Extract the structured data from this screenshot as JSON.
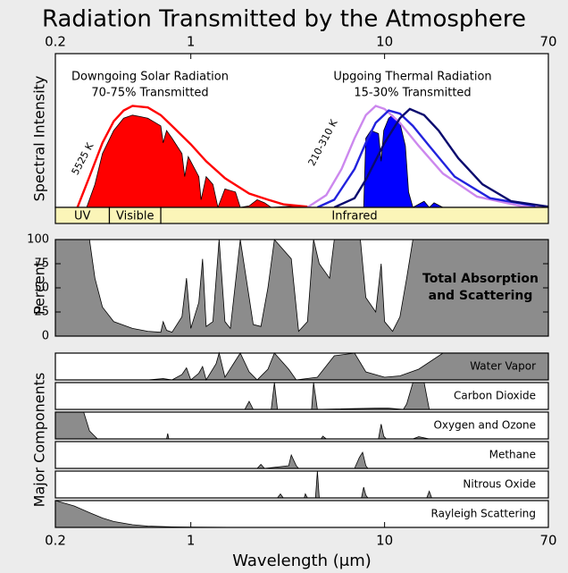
{
  "chart_data": [
    {
      "type": "area",
      "title": "Radiation Transmitted by the Atmosphere",
      "ylabel": "Spectral Intensity",
      "xscale": "log",
      "xlim": [
        0.2,
        70
      ],
      "xticks": [
        0.2,
        1,
        10,
        70
      ],
      "ylim": [
        0,
        1
      ],
      "annotations": [
        "Downgoing Solar Radiation",
        "70-75% Transmitted",
        "Upgoing Thermal Radiation",
        "15-30% Transmitted",
        "5525 K",
        "210-310 K"
      ],
      "bands": [
        {
          "label": "UV",
          "from": 0.2,
          "to": 0.38
        },
        {
          "label": "Visible",
          "from": 0.38,
          "to": 0.7
        },
        {
          "label": "Infrared",
          "from": 0.7,
          "to": 70
        }
      ],
      "series": [
        {
          "style": "area",
          "color": "#ff0000",
          "x": [
            0.29,
            0.32,
            0.35,
            0.4,
            0.45,
            0.5,
            0.55,
            0.6,
            0.7,
            0.72,
            0.75,
            0.8,
            0.9,
            0.93,
            0.97,
            1.1,
            1.13,
            1.2,
            1.3,
            1.38,
            1.5,
            1.7,
            1.8,
            2.0,
            2.2,
            2.4,
            2.6,
            3.5,
            4
          ],
          "values": [
            0,
            0.15,
            0.35,
            0.5,
            0.58,
            0.6,
            0.59,
            0.58,
            0.53,
            0.42,
            0.5,
            0.45,
            0.35,
            0.2,
            0.33,
            0.2,
            0.05,
            0.2,
            0.15,
            0,
            0.12,
            0.1,
            0,
            0.01,
            0.05,
            0.03,
            0,
            0.01,
            0
          ]
        },
        {
          "style": "area",
          "color": "#0000ff",
          "x": [
            7.8,
            8,
            8.5,
            9.3,
            9.6,
            9.9,
            10.5,
            11,
            12,
            12.8,
            13.3,
            14,
            16,
            17,
            18,
            20
          ],
          "values": [
            0,
            0.45,
            0.5,
            0.48,
            0.3,
            0.5,
            0.58,
            0.6,
            0.55,
            0.4,
            0.1,
            0,
            0.04,
            0,
            0.03,
            0
          ]
        },
        {
          "style": "line",
          "color": "#ff0000",
          "x": [
            0.26,
            0.3,
            0.35,
            0.4,
            0.45,
            0.5,
            0.6,
            0.7,
            0.8,
            1.0,
            1.2,
            1.5,
            2,
            2.5,
            3,
            4
          ],
          "values": [
            0,
            0.2,
            0.42,
            0.56,
            0.63,
            0.66,
            0.65,
            0.6,
            0.53,
            0.41,
            0.3,
            0.19,
            0.09,
            0.05,
            0.02,
            0.005
          ]
        },
        {
          "style": "line",
          "color": "#cc88ee",
          "x": [
            4,
            5,
            6,
            7,
            8,
            9,
            10,
            12,
            15,
            20,
            30,
            50,
            70
          ],
          "values": [
            0,
            0.08,
            0.25,
            0.45,
            0.6,
            0.66,
            0.64,
            0.55,
            0.4,
            0.22,
            0.07,
            0.01,
            0
          ]
        },
        {
          "style": "line",
          "color": "#2222dd",
          "x": [
            4.5,
            5.5,
            7,
            8,
            9,
            10.5,
            12,
            14,
            17,
            23,
            35,
            60
          ],
          "values": [
            0,
            0.05,
            0.25,
            0.42,
            0.55,
            0.63,
            0.61,
            0.53,
            0.4,
            0.2,
            0.06,
            0.01
          ]
        },
        {
          "style": "line",
          "color": "#0a0a6e",
          "x": [
            5.5,
            7,
            8,
            10,
            12,
            13.5,
            16,
            19,
            24,
            32,
            45,
            70
          ],
          "values": [
            0,
            0.06,
            0.18,
            0.42,
            0.58,
            0.64,
            0.6,
            0.5,
            0.32,
            0.15,
            0.04,
            0.005
          ]
        }
      ]
    },
    {
      "type": "area",
      "ylabel": "Percent",
      "xscale": "log",
      "xlim": [
        0.2,
        70
      ],
      "ylim": [
        0,
        100
      ],
      "yticks": [
        0,
        25,
        50,
        75,
        100
      ],
      "annotations": [
        "Total Absorption",
        "and Scattering"
      ],
      "series": [
        {
          "style": "area",
          "color": "#8c8c8c",
          "x": [
            0.2,
            0.3,
            0.32,
            0.35,
            0.4,
            0.5,
            0.6,
            0.7,
            0.72,
            0.75,
            0.8,
            0.9,
            0.95,
            1.0,
            1.1,
            1.15,
            1.2,
            1.3,
            1.4,
            1.5,
            1.6,
            1.8,
            2.0,
            2.1,
            2.3,
            2.5,
            2.7,
            3.3,
            3.6,
            4.0,
            4.3,
            4.6,
            5.2,
            5.5,
            7.5,
            8,
            9,
            9.6,
            10,
            11,
            12,
            13,
            14,
            70
          ],
          "values": [
            100,
            100,
            60,
            30,
            15,
            8,
            5,
            4,
            15,
            6,
            4,
            20,
            60,
            8,
            35,
            80,
            10,
            15,
            100,
            15,
            8,
            100,
            40,
            12,
            10,
            50,
            100,
            80,
            5,
            15,
            100,
            75,
            60,
            100,
            100,
            40,
            25,
            75,
            15,
            5,
            20,
            60,
            100,
            100
          ]
        }
      ]
    },
    {
      "type": "area",
      "ylabel": "Major Components",
      "label": "Water Vapor",
      "xscale": "log",
      "xlim": [
        0.2,
        70
      ],
      "ylim": [
        0,
        100
      ],
      "series": [
        {
          "style": "area",
          "color": "#8c8c8c",
          "x": [
            0.2,
            0.6,
            0.72,
            0.8,
            0.9,
            0.95,
            1.0,
            1.1,
            1.15,
            1.2,
            1.35,
            1.4,
            1.5,
            1.8,
            2.0,
            2.2,
            2.5,
            2.7,
            3.2,
            3.5,
            4.5,
            5.5,
            7,
            8,
            10,
            12,
            15,
            20,
            70
          ],
          "values": [
            0,
            0,
            5,
            0,
            20,
            45,
            0,
            25,
            50,
            0,
            60,
            100,
            10,
            100,
            30,
            0,
            40,
            100,
            40,
            0,
            10,
            90,
            100,
            30,
            10,
            15,
            40,
            100,
            100
          ]
        }
      ]
    },
    {
      "type": "area",
      "label": "Carbon Dioxide",
      "xscale": "log",
      "xlim": [
        0.2,
        70
      ],
      "ylim": [
        0,
        100
      ],
      "series": [
        {
          "style": "area",
          "color": "#8c8c8c",
          "x": [
            0.2,
            1.9,
            2.0,
            2.1,
            2.6,
            2.7,
            2.8,
            4.2,
            4.3,
            4.5,
            9.4,
            10.4,
            12.5,
            13,
            14,
            16,
            17,
            70
          ],
          "values": [
            0,
            0,
            30,
            0,
            0,
            100,
            0,
            0,
            100,
            0,
            5,
            5,
            0,
            20,
            100,
            100,
            0,
            0
          ]
        }
      ]
    },
    {
      "type": "area",
      "label": "Oxygen and Ozone",
      "xscale": "log",
      "xlim": [
        0.2,
        70
      ],
      "ylim": [
        0,
        100
      ],
      "series": [
        {
          "style": "area",
          "color": "#8c8c8c",
          "x": [
            0.2,
            0.28,
            0.3,
            0.33,
            0.75,
            0.76,
            0.77,
            4.7,
            4.8,
            5,
            9.3,
            9.6,
            9.9,
            10.2,
            14,
            15,
            17,
            70
          ],
          "values": [
            100,
            100,
            30,
            0,
            0,
            20,
            0,
            0,
            10,
            0,
            0,
            55,
            10,
            0,
            0,
            8,
            0,
            0
          ]
        }
      ]
    },
    {
      "type": "area",
      "label": "Methane",
      "xscale": "log",
      "xlim": [
        0.2,
        70
      ],
      "ylim": [
        0,
        100
      ],
      "series": [
        {
          "style": "area",
          "color": "#8c8c8c",
          "x": [
            0.2,
            2.2,
            2.3,
            2.4,
            3.2,
            3.3,
            3.5,
            3.6,
            7,
            7.4,
            7.7,
            8,
            8.2,
            70
          ],
          "values": [
            0,
            0,
            15,
            0,
            10,
            50,
            10,
            0,
            0,
            40,
            60,
            10,
            0,
            0
          ]
        }
      ]
    },
    {
      "type": "area",
      "label": "Nitrous Oxide",
      "xscale": "log",
      "xlim": [
        0.2,
        70
      ],
      "ylim": [
        0,
        100
      ],
      "series": [
        {
          "style": "area",
          "color": "#8c8c8c",
          "x": [
            0.2,
            2.8,
            2.9,
            3.0,
            3.85,
            3.9,
            4.0,
            4.4,
            4.5,
            4.6,
            7.6,
            7.8,
            8,
            8.2,
            16.5,
            17,
            17.5,
            70
          ],
          "values": [
            0,
            0,
            15,
            0,
            0,
            15,
            0,
            0,
            100,
            0,
            0,
            40,
            10,
            0,
            0,
            25,
            0,
            0
          ]
        }
      ]
    },
    {
      "type": "area",
      "label": "Rayleigh Scattering",
      "xlabel": "Wavelength (μm)",
      "xscale": "log",
      "xlim": [
        0.2,
        70
      ],
      "xticks": [
        0.2,
        1,
        10,
        70
      ],
      "ylim": [
        0,
        100
      ],
      "series": [
        {
          "style": "area",
          "color": "#8c8c8c",
          "x": [
            0.2,
            0.25,
            0.3,
            0.35,
            0.4,
            0.5,
            0.6,
            0.8,
            1,
            2,
            70
          ],
          "values": [
            100,
            80,
            55,
            35,
            22,
            10,
            5,
            2,
            1,
            0,
            0
          ]
        }
      ]
    }
  ]
}
